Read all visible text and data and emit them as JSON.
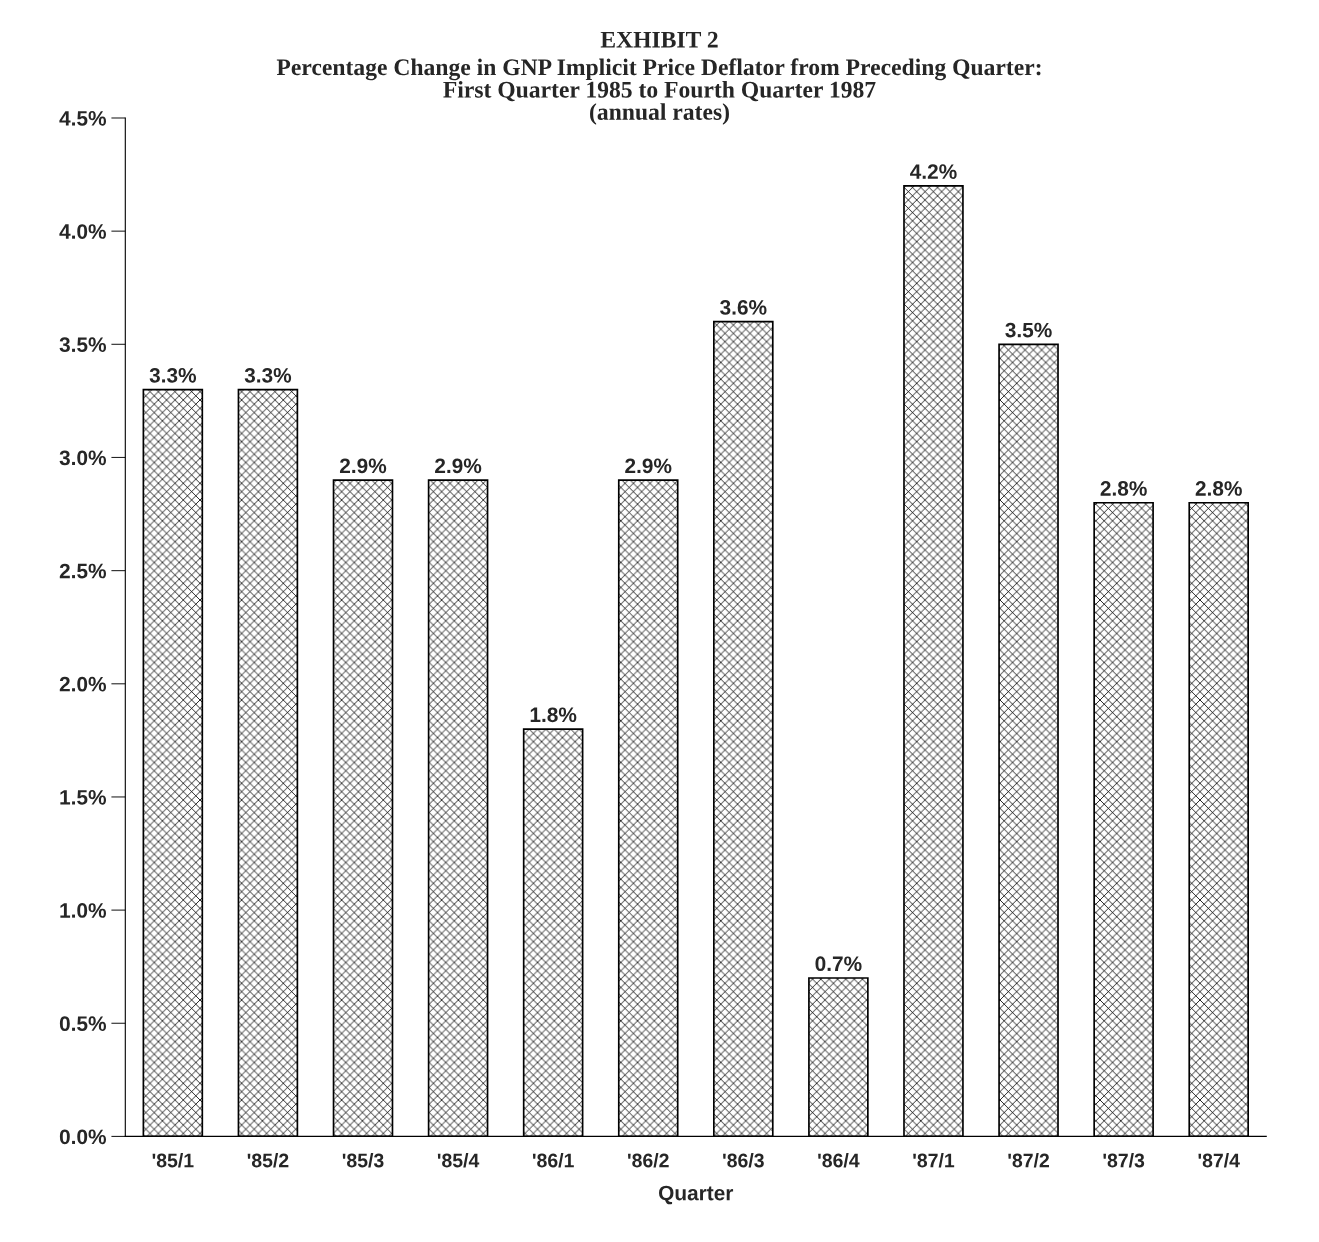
{
  "chart_data": {
    "type": "bar",
    "title": "EXHIBIT 2",
    "subtitle": "Percentage Change in GNP Implicit Price Deflator from Preceding Quarter:\nFirst Quarter 1985 to Fourth Quarter 1987\n(annual rates)",
    "xlabel": "Quarter",
    "categories": [
      "'85/1",
      "'85/2",
      "'85/3",
      "'85/4",
      "'86/1",
      "'86/2",
      "'86/3",
      "'86/4",
      "'87/1",
      "'87/2",
      "'87/3",
      "'87/4"
    ],
    "values": [
      3.3,
      3.3,
      2.9,
      2.9,
      1.8,
      2.9,
      3.6,
      0.7,
      4.2,
      3.5,
      2.8,
      2.8
    ],
    "value_labels": [
      "3.3%",
      "3.3%",
      "2.9%",
      "2.9%",
      "1.8%",
      "2.9%",
      "3.6%",
      "0.7%",
      "4.2%",
      "3.5%",
      "2.8%",
      "2.8%"
    ],
    "color": "#000000",
    "ylim": [
      0,
      4.5
    ],
    "yticks": [
      {
        "value": 0,
        "label": "0.0%"
      },
      {
        "value": 0.5,
        "label": "0.5%"
      },
      {
        "value": 1,
        "label": "1.0%"
      },
      {
        "value": 1.5,
        "label": "1.5%"
      },
      {
        "value": 2,
        "label": "2.0%"
      },
      {
        "value": 2.5,
        "label": "2.5%"
      },
      {
        "value": 3,
        "label": "3.0%"
      },
      {
        "value": 3.5,
        "label": "3.5%"
      },
      {
        "value": 4,
        "label": "4.0%"
      },
      {
        "value": 4.5,
        "label": "4.5%"
      }
    ],
    "grid": false,
    "legend": false
  }
}
